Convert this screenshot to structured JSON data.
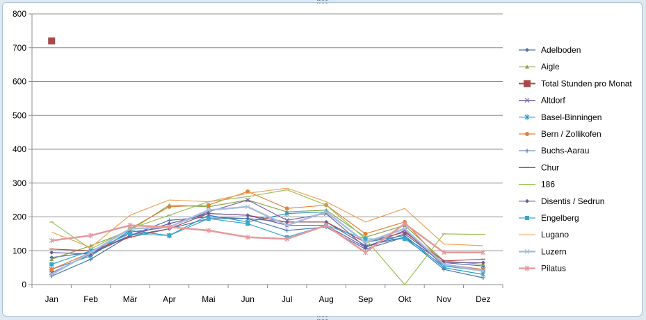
{
  "chart_data": {
    "type": "line",
    "categories": [
      "Jan",
      "Feb",
      "Mär",
      "Apr",
      "Mai",
      "Jun",
      "Jul",
      "Aug",
      "Sep",
      "Okt",
      "Nov",
      "Dez"
    ],
    "ylim": [
      0,
      800
    ],
    "yticks": [
      0,
      100,
      200,
      300,
      400,
      500,
      600,
      700,
      800
    ],
    "grid": true,
    "legend_position": "right",
    "series": [
      {
        "name": "Adelboden",
        "color": "#4a6ea8",
        "marker": "diamond",
        "values": [
          80,
          95,
          145,
          165,
          195,
          195,
          185,
          185,
          115,
          140,
          65,
          55
        ]
      },
      {
        "name": "Aigle",
        "color": "#8aa64c",
        "marker": "triangle",
        "values": [
          75,
          115,
          160,
          235,
          230,
          250,
          215,
          220,
          140,
          175,
          70,
          60
        ]
      },
      {
        "name": "Total Stunden pro Monat",
        "color": "#a84848",
        "marker": "square",
        "values": [
          720,
          null,
          null,
          null,
          null,
          null,
          null,
          null,
          null,
          null,
          null,
          null
        ]
      },
      {
        "name": "Altdorf",
        "color": "#7a66a8",
        "marker": "x",
        "values": [
          35,
          90,
          155,
          170,
          215,
          250,
          190,
          210,
          110,
          160,
          55,
          45
        ]
      },
      {
        "name": "Basel-Binningen",
        "color": "#2e9bc0",
        "marker": "asterisk",
        "values": [
          45,
          85,
          160,
          145,
          205,
          185,
          210,
          215,
          125,
          145,
          50,
          30
        ]
      },
      {
        "name": "Bern / Zollikofen",
        "color": "#e0823a",
        "marker": "circle",
        "values": [
          45,
          95,
          165,
          230,
          235,
          275,
          225,
          235,
          150,
          185,
          60,
          45
        ]
      },
      {
        "name": "Buchs-Aarau",
        "color": "#4a78b4",
        "marker": "plus",
        "values": [
          25,
          75,
          145,
          190,
          200,
          195,
          160,
          170,
          105,
          140,
          45,
          20
        ]
      },
      {
        "name": "Chur",
        "color": "#b24a4a",
        "marker": "dash",
        "values": [
          105,
          100,
          140,
          165,
          210,
          205,
          185,
          185,
          125,
          155,
          70,
          75
        ]
      },
      {
        "name": "186",
        "color": "#9cbf5a",
        "marker": "dash",
        "values": [
          185,
          105,
          165,
          205,
          245,
          260,
          280,
          235,
          135,
          0,
          150,
          148
        ]
      },
      {
        "name": "Disentis / Sedrun",
        "color": "#7058a0",
        "marker": "diamond",
        "values": [
          95,
          90,
          145,
          180,
          210,
          205,
          175,
          175,
          110,
          150,
          65,
          65
        ]
      },
      {
        "name": "Engelberg",
        "color": "#35a9d2",
        "marker": "square",
        "values": [
          60,
          100,
          150,
          145,
          195,
          180,
          140,
          175,
          135,
          135,
          55,
          40
        ]
      },
      {
        "name": "Lugano",
        "color": "#f0a05a",
        "marker": "none",
        "values": [
          155,
          110,
          205,
          250,
          245,
          270,
          285,
          245,
          185,
          225,
          120,
          115
        ]
      },
      {
        "name": "Luzern",
        "color": "#a7bde0",
        "marker": "x",
        "values": [
          30,
          95,
          165,
          170,
          220,
          230,
          175,
          215,
          125,
          165,
          60,
          40
        ]
      },
      {
        "name": "Pilatus",
        "color": "#e6999c",
        "marker": "asterisk",
        "values": [
          130,
          145,
          175,
          170,
          160,
          140,
          135,
          175,
          95,
          180,
          95,
          95
        ]
      }
    ]
  }
}
